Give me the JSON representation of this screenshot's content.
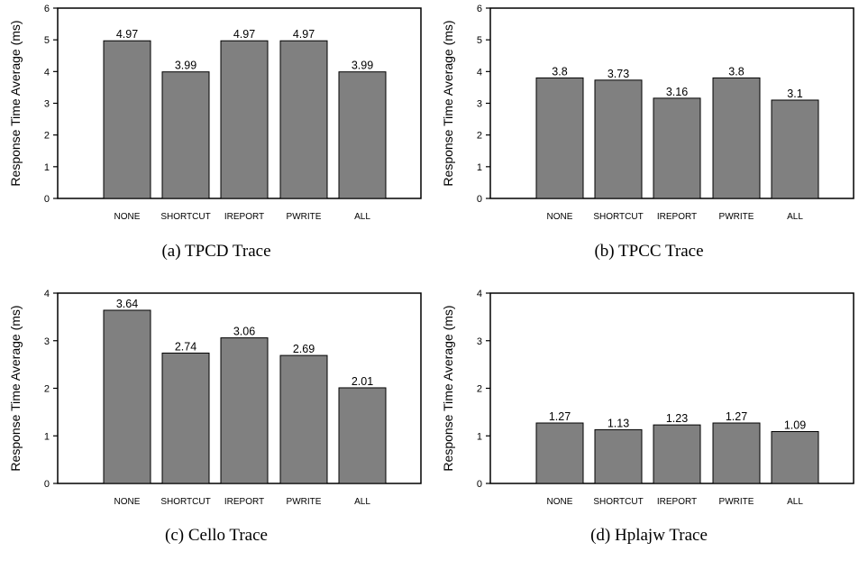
{
  "chart_data": [
    {
      "type": "bar",
      "caption": "(a) TPCD Trace",
      "ylabel": "Response Time Average (ms)",
      "categories": [
        "NONE",
        "SHORTCUT",
        "IREPORT",
        "PWRITE",
        "ALL"
      ],
      "values": [
        4.97,
        3.99,
        4.97,
        4.97,
        3.99
      ],
      "value_labels": [
        "4.97",
        "3.99",
        "4.97",
        "4.97",
        "3.99"
      ],
      "ylim": [
        0,
        6
      ],
      "yticks": [
        0,
        1,
        2,
        3,
        4,
        5,
        6
      ],
      "bar_color": "#808080"
    },
    {
      "type": "bar",
      "caption": "(b) TPCC Trace",
      "ylabel": "Response Time Average (ms)",
      "categories": [
        "NONE",
        "SHORTCUT",
        "IREPORT",
        "PWRITE",
        "ALL"
      ],
      "values": [
        3.8,
        3.73,
        3.16,
        3.8,
        3.1
      ],
      "value_labels": [
        "3.8",
        "3.73",
        "3.16",
        "3.8",
        "3.1"
      ],
      "ylim": [
        0,
        6
      ],
      "yticks": [
        0,
        1,
        2,
        3,
        4,
        5,
        6
      ],
      "bar_color": "#808080"
    },
    {
      "type": "bar",
      "caption": "(c) Cello Trace",
      "ylabel": "Response Time Average (ms)",
      "categories": [
        "NONE",
        "SHORTCUT",
        "IREPORT",
        "PWRITE",
        "ALL"
      ],
      "values": [
        3.64,
        2.74,
        3.06,
        2.69,
        2.01
      ],
      "value_labels": [
        "3.64",
        "2.74",
        "3.06",
        "2.69",
        "2.01"
      ],
      "ylim": [
        0,
        4
      ],
      "yticks": [
        0,
        1,
        2,
        3,
        4
      ],
      "bar_color": "#808080"
    },
    {
      "type": "bar",
      "caption": "(d) Hplajw Trace",
      "ylabel": "Response Time Average (ms)",
      "categories": [
        "NONE",
        "SHORTCUT",
        "IREPORT",
        "PWRITE",
        "ALL"
      ],
      "values": [
        1.27,
        1.13,
        1.23,
        1.27,
        1.09
      ],
      "value_labels": [
        "1.27",
        "1.13",
        "1.23",
        "1.27",
        "1.09"
      ],
      "ylim": [
        0,
        4
      ],
      "yticks": [
        0,
        1,
        2,
        3,
        4
      ],
      "bar_color": "#808080"
    }
  ]
}
